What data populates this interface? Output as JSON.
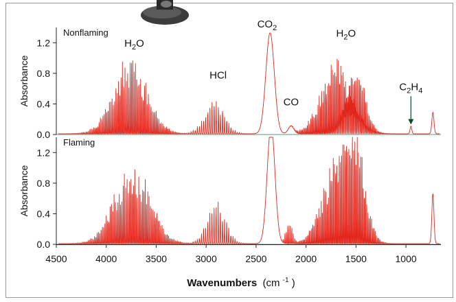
{
  "chart_data": {
    "type": "line",
    "xlabel": "Wavenumbers",
    "xlabel_unit": "(cm",
    "xlabel_unit_exp": "-1",
    "xlabel_unit_close": ")",
    "xlim": [
      4500,
      650
    ],
    "x_reversed": true,
    "x_ticks": [
      4500,
      4000,
      3500,
      3000,
      2500,
      2000,
      1500,
      1000
    ],
    "series_color": "#e2261c",
    "panels": [
      {
        "title": "Nonflaming",
        "ylabel": "Absorbance",
        "ylim": [
          0,
          1.4
        ],
        "y_ticks": [
          "0.0",
          "0.4",
          "0.8",
          "1.2"
        ],
        "annotations": [
          {
            "base": "H",
            "sub": "2",
            "rest": "O",
            "x": 3720,
            "y": 1.15
          },
          {
            "base": "HCl",
            "sub": "",
            "rest": "",
            "x": 2880,
            "y": 0.73
          },
          {
            "base": "CO",
            "sub": "2",
            "rest": "",
            "x": 2390,
            "y": 1.42
          },
          {
            "base": "CO",
            "sub": "",
            "rest": "",
            "x": 2150,
            "y": 0.38
          },
          {
            "base": "H",
            "sub": "2",
            "rest": "O",
            "x": 1600,
            "y": 1.28
          },
          {
            "base": "C",
            "sub": "2",
            "rest": "H",
            "sub2": "4",
            "x": 950,
            "y": 0.58
          }
        ],
        "arrow": {
          "x": 950,
          "y_from": 0.5,
          "y_to": 0.13
        },
        "bands": [
          {
            "center": 3760,
            "width": 240,
            "height": 1.05,
            "spacing": 13
          },
          {
            "center": 2920,
            "width": 140,
            "height": 0.45,
            "spacing": 21
          },
          {
            "center": 1700,
            "width": 210,
            "height": 1.08,
            "spacing": 12
          },
          {
            "center": 1500,
            "width": 130,
            "height": 1.0,
            "spacing": 12
          }
        ],
        "peaks": [
          {
            "center": 2360,
            "width": 60,
            "height": 1.32
          },
          {
            "center": 2150,
            "width": 40,
            "height": 0.1
          },
          {
            "center": 950,
            "width": 12,
            "height": 0.1
          },
          {
            "center": 730,
            "width": 15,
            "height": 0.28
          }
        ],
        "baseline": 0.01
      },
      {
        "title": "Flaming",
        "ylabel": "Absorbance",
        "ylim": [
          0,
          1.4
        ],
        "y_ticks": [
          "0.0",
          "0.4",
          "0.8",
          "1.2"
        ],
        "annotations": [],
        "bands": [
          {
            "center": 3740,
            "width": 250,
            "height": 1.1,
            "spacing": 13
          },
          {
            "center": 2900,
            "width": 130,
            "height": 0.58,
            "spacing": 21
          },
          {
            "center": 1680,
            "width": 210,
            "height": 1.25,
            "spacing": 12
          },
          {
            "center": 1500,
            "width": 130,
            "height": 1.2,
            "spacing": 12
          },
          {
            "center": 2170,
            "width": 45,
            "height": 0.32,
            "spacing": 14
          }
        ],
        "peaks": [
          {
            "center": 2350,
            "width": 55,
            "height": 1.55
          },
          {
            "center": 730,
            "width": 15,
            "height": 0.65
          }
        ],
        "baseline": 0.01
      }
    ]
  }
}
